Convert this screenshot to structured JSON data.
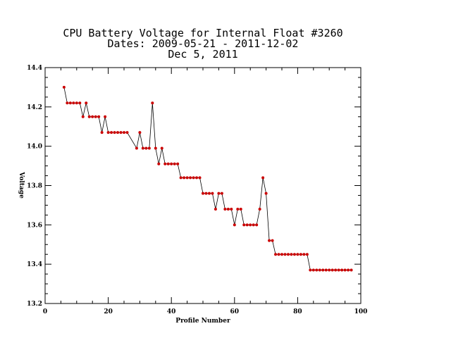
{
  "chart_data": {
    "type": "line",
    "title_lines": [
      "CPU Battery Voltage for Internal Float #3260",
      "Dates:  2009-05-21 -  2011-12-02",
      "Dec  5, 2011"
    ],
    "xlabel": "Profile Number",
    "ylabel": "Voltage",
    "xlim": [
      0,
      100
    ],
    "ylim": [
      13.2,
      14.4
    ],
    "x_ticks": [
      0,
      20,
      40,
      60,
      80,
      100
    ],
    "x_tick_labels": [
      "0",
      "20",
      "40",
      "60",
      "80",
      "100"
    ],
    "y_ticks": [
      13.2,
      13.4,
      13.6,
      13.8,
      14.0,
      14.2,
      14.4
    ],
    "y_tick_labels": [
      "13.2",
      "13.4",
      "13.6",
      "13.8",
      "14.0",
      "14.2",
      "14.4"
    ],
    "grid": false,
    "colors": {
      "line": "#000000",
      "marker": "#cc0000",
      "axes": "#000000"
    },
    "series": [
      {
        "x": [
          6,
          7,
          8,
          9,
          10,
          11,
          12,
          13,
          14,
          15,
          16,
          17,
          18,
          19,
          20,
          21,
          22,
          23,
          24,
          25,
          26,
          29,
          30,
          31,
          32,
          33,
          34,
          35,
          36,
          37,
          38,
          39,
          40,
          41,
          42,
          43,
          44,
          45,
          46,
          47,
          48,
          49,
          50,
          51,
          52,
          53,
          54,
          55,
          56,
          57,
          58,
          59,
          60,
          61,
          62,
          63,
          64,
          65,
          66,
          67,
          68,
          69,
          70,
          71,
          72,
          73,
          74,
          75,
          76,
          77,
          78,
          79,
          80,
          81,
          82,
          83,
          84,
          85,
          86,
          87,
          88,
          89,
          90,
          91,
          92,
          93,
          94,
          95,
          96,
          97
        ],
        "y": [
          14.3,
          14.22,
          14.22,
          14.22,
          14.22,
          14.22,
          14.15,
          14.22,
          14.15,
          14.15,
          14.15,
          14.15,
          14.07,
          14.15,
          14.07,
          14.07,
          14.07,
          14.07,
          14.07,
          14.07,
          14.07,
          13.99,
          14.07,
          13.99,
          13.99,
          13.99,
          14.22,
          13.99,
          13.91,
          13.99,
          13.91,
          13.91,
          13.91,
          13.91,
          13.91,
          13.84,
          13.84,
          13.84,
          13.84,
          13.84,
          13.84,
          13.84,
          13.76,
          13.76,
          13.76,
          13.76,
          13.68,
          13.76,
          13.76,
          13.68,
          13.68,
          13.68,
          13.6,
          13.68,
          13.68,
          13.6,
          13.6,
          13.6,
          13.6,
          13.6,
          13.68,
          13.84,
          13.76,
          13.52,
          13.52,
          13.45,
          13.45,
          13.45,
          13.45,
          13.45,
          13.45,
          13.45,
          13.45,
          13.45,
          13.45,
          13.45,
          13.37,
          13.37,
          13.37,
          13.37,
          13.37,
          13.37,
          13.37,
          13.37,
          13.37,
          13.37,
          13.37,
          13.37,
          13.37,
          13.37
        ]
      }
    ]
  }
}
